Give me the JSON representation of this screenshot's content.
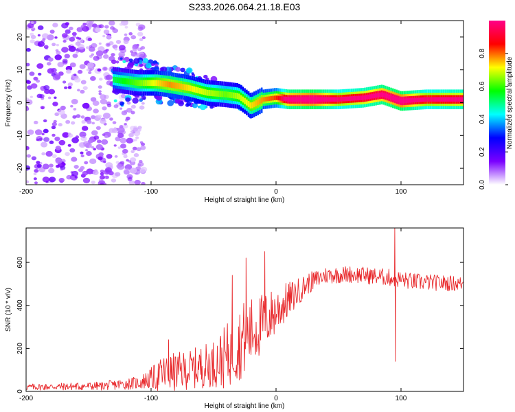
{
  "title": "S233.2026.064.21.18.E03",
  "chart_data": [
    {
      "type": "heatmap",
      "name": "spectrogram",
      "xlabel": "Height of straight line (km)",
      "ylabel": "Frequency (Hz)",
      "xlim": [
        -200,
        150
      ],
      "ylim": [
        -25,
        25
      ],
      "xticks": [
        -200,
        -100,
        0,
        100
      ],
      "xticks_labels": [
        "-200",
        "-100",
        "0",
        "100"
      ],
      "yticks": [
        -20,
        -10,
        0,
        10,
        20
      ],
      "yticks_labels": [
        "-20",
        "-10",
        "0",
        "10",
        "20"
      ],
      "colorbar": {
        "label": "Normalized spectral amplitude",
        "range": [
          0,
          1
        ],
        "ticks": [
          0.0,
          0.2,
          0.4,
          0.6,
          0.8
        ],
        "tick_labels": [
          "0.0",
          "0.2",
          "0.4",
          "0.6",
          "0.8"
        ],
        "colors": [
          "#ffffff",
          "#7a00ff",
          "#0000ff",
          "#00ffff",
          "#00ff00",
          "#ffff00",
          "#ff0000",
          "#ff0088"
        ]
      },
      "ridge": [
        {
          "x": -130,
          "f": 7,
          "amp": 0.35
        },
        {
          "x": -110,
          "f": 6,
          "amp": 0.45
        },
        {
          "x": -95,
          "f": 6,
          "amp": 0.55
        },
        {
          "x": -85,
          "f": 5.5,
          "amp": 0.6
        },
        {
          "x": -70,
          "f": 4.5,
          "amp": 0.55
        },
        {
          "x": -55,
          "f": 3,
          "amp": 0.5
        },
        {
          "x": -40,
          "f": 2.5,
          "amp": 0.45
        },
        {
          "x": -30,
          "f": 2,
          "amp": 0.5
        },
        {
          "x": -20,
          "f": -1,
          "amp": 0.55
        },
        {
          "x": -10,
          "f": 1,
          "amp": 0.6
        },
        {
          "x": 0,
          "f": 1.5,
          "amp": 0.65
        },
        {
          "x": 10,
          "f": 1,
          "amp": 0.9
        },
        {
          "x": 30,
          "f": 1,
          "amp": 0.95
        },
        {
          "x": 50,
          "f": 1,
          "amp": 0.8
        },
        {
          "x": 70,
          "f": 1.5,
          "amp": 0.85
        },
        {
          "x": 85,
          "f": 2.5,
          "amp": 0.9
        },
        {
          "x": 100,
          "f": 0.5,
          "amp": 0.95
        },
        {
          "x": 120,
          "f": 1,
          "amp": 0.8
        },
        {
          "x": 150,
          "f": 1,
          "amp": 0.85
        }
      ],
      "noise_region": {
        "x_from": -200,
        "x_to": -105,
        "f_from": -25,
        "f_to": 25
      }
    },
    {
      "type": "line",
      "name": "snr",
      "xlabel": "Height of straight line (km)",
      "ylabel": "SNR (10 * v/v)",
      "xlim": [
        -200,
        150
      ],
      "ylim": [
        0,
        760
      ],
      "xticks": [
        -200,
        -100,
        0,
        100
      ],
      "xticks_labels": [
        "-200",
        "-100",
        "0",
        "100"
      ],
      "yticks": [
        0,
        200,
        400,
        600
      ],
      "yticks_labels": [
        "0",
        "200",
        "400",
        "600"
      ],
      "color": "#e8282b",
      "envelope": [
        {
          "x": -200,
          "base": 20,
          "amp": 15
        },
        {
          "x": -140,
          "base": 25,
          "amp": 20
        },
        {
          "x": -110,
          "base": 40,
          "amp": 30
        },
        {
          "x": -100,
          "base": 60,
          "amp": 50
        },
        {
          "x": -90,
          "base": 80,
          "amp": 90
        },
        {
          "x": -70,
          "base": 100,
          "amp": 90
        },
        {
          "x": -50,
          "base": 130,
          "amp": 110
        },
        {
          "x": -40,
          "base": 160,
          "amp": 150
        },
        {
          "x": -25,
          "base": 250,
          "amp": 180
        },
        {
          "x": -10,
          "base": 320,
          "amp": 140
        },
        {
          "x": 5,
          "base": 400,
          "amp": 100
        },
        {
          "x": 15,
          "base": 450,
          "amp": 70
        },
        {
          "x": 25,
          "base": 500,
          "amp": 50
        },
        {
          "x": 40,
          "base": 540,
          "amp": 40
        },
        {
          "x": 60,
          "base": 545,
          "amp": 40
        },
        {
          "x": 90,
          "base": 530,
          "amp": 40
        },
        {
          "x": 110,
          "base": 510,
          "amp": 40
        },
        {
          "x": 150,
          "base": 500,
          "amp": 35
        }
      ],
      "spikes": [
        {
          "x": -86,
          "y": 240
        },
        {
          "x": -35,
          "y": 540
        },
        {
          "x": -24,
          "y": 620
        },
        {
          "x": -9,
          "y": 650
        },
        {
          "x": 95,
          "y": 760
        },
        {
          "x": 95.5,
          "y": 140
        }
      ]
    }
  ]
}
